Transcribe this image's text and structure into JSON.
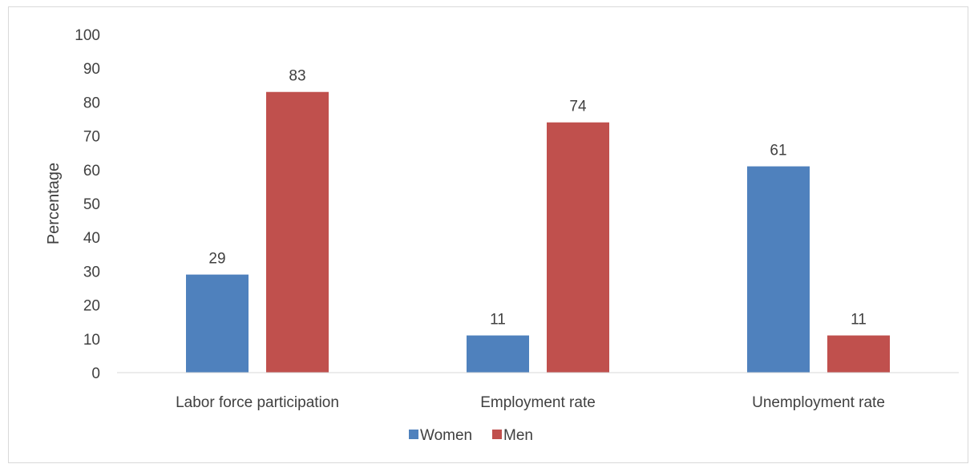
{
  "chart_data": {
    "type": "bar",
    "title": "",
    "xlabel": "",
    "ylabel": "Percentage",
    "ylim": [
      0,
      100
    ],
    "yticks": [
      0,
      10,
      20,
      30,
      40,
      50,
      60,
      70,
      80,
      90,
      100
    ],
    "categories": [
      "Labor force participation",
      "Employment rate",
      "Unemployment rate"
    ],
    "series": [
      {
        "name": "Women",
        "color": "#4f81bd",
        "values": [
          29,
          11,
          61
        ]
      },
      {
        "name": "Men",
        "color": "#c0504d",
        "values": [
          83,
          74,
          11
        ]
      }
    ],
    "grid": false,
    "legend": "bottom-center",
    "data_labels": true
  }
}
